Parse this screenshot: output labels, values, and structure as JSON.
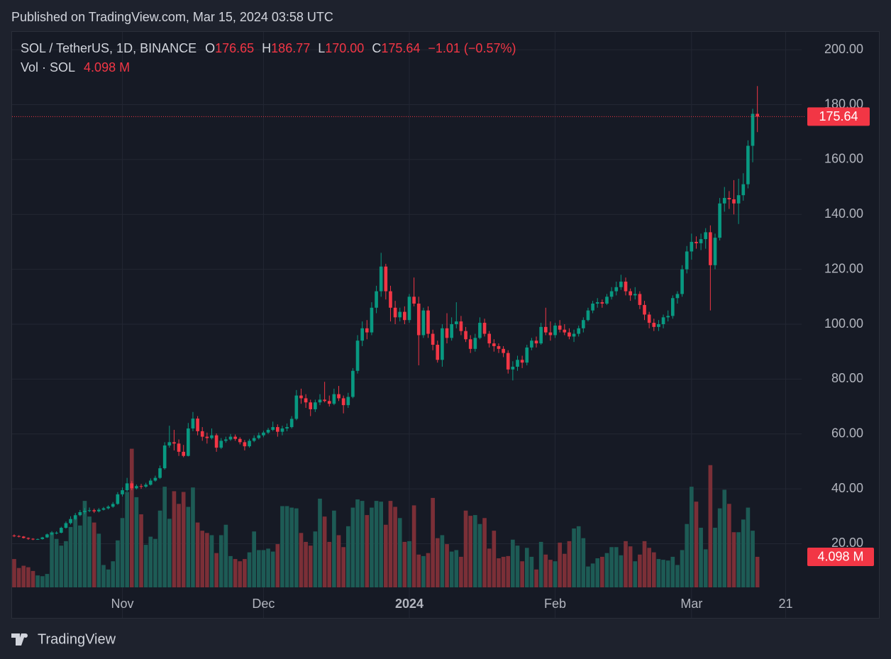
{
  "header": {
    "published": "Published on TradingView.com, Mar 15, 2024 03:58 UTC"
  },
  "footer": {
    "brand": "TradingView"
  },
  "chart_data": {
    "type": "candlestick",
    "symbol": "SOL / TetherUS, 1D, BINANCE",
    "ohlc_legend": [
      {
        "label": "O",
        "value": "176.65"
      },
      {
        "label": "H",
        "value": "186.77"
      },
      {
        "label": "L",
        "value": "170.00"
      },
      {
        "label": "C",
        "value": "175.64"
      }
    ],
    "change": "−1.01 (−0.57%)",
    "volume_legend": {
      "label": "Vol · SOL",
      "value": "4.098 M"
    },
    "last_price_label": "175.64",
    "last_volume_label": "4.098 M",
    "up_color": "#089981",
    "down_color": "#f23645",
    "up_volume_color": "#1d5b55",
    "down_volume_color": "#7b2f37",
    "grid": true,
    "xlim": [
      -0.45,
      167.4
    ],
    "xticks": [
      {
        "value": 23,
        "label": "Nov"
      },
      {
        "value": 53,
        "label": "Dec"
      },
      {
        "value": 84,
        "label": "2024"
      },
      {
        "value": 115,
        "label": "Feb"
      },
      {
        "value": 144,
        "label": "Mar"
      },
      {
        "value": 164,
        "label": "21"
      }
    ],
    "ylim": [
      4.1,
      206.5
    ],
    "yticks": [
      {
        "value": 20,
        "label": "20.00"
      },
      {
        "value": 40,
        "label": "40.00"
      },
      {
        "value": 60,
        "label": "60.00"
      },
      {
        "value": 80,
        "label": "80.00"
      },
      {
        "value": 100,
        "label": "100.00"
      },
      {
        "value": 120,
        "label": "120.00"
      },
      {
        "value": 140,
        "label": "140.00"
      },
      {
        "value": 160,
        "label": "160.00"
      },
      {
        "value": 180,
        "label": "180.00"
      },
      {
        "value": 200,
        "label": "200.00"
      }
    ],
    "volume_ylim": [
      0,
      21.7
    ],
    "ohlc": [
      [
        23.0,
        23.4,
        22.4,
        22.8
      ],
      [
        22.8,
        23.1,
        22.3,
        22.6
      ],
      [
        22.6,
        22.8,
        21.9,
        22.1
      ],
      [
        22.1,
        22.3,
        21.4,
        21.8
      ],
      [
        21.8,
        22.0,
        21.3,
        21.6
      ],
      [
        21.6,
        21.9,
        21.4,
        21.7
      ],
      [
        21.7,
        22.5,
        21.5,
        22.3
      ],
      [
        22.3,
        23.7,
        22.1,
        23.4
      ],
      [
        23.4,
        24.6,
        23.1,
        23.9
      ],
      [
        23.9,
        24.5,
        23.4,
        24.0
      ],
      [
        24.0,
        26.2,
        23.8,
        25.8
      ],
      [
        25.8,
        28.1,
        25.5,
        27.5
      ],
      [
        27.5,
        30.0,
        27.0,
        29.0
      ],
      [
        29.0,
        31.2,
        28.6,
        30.4
      ],
      [
        30.4,
        32.3,
        30.0,
        31.5
      ],
      [
        31.5,
        33.0,
        30.8,
        32.0
      ],
      [
        32.0,
        33.2,
        31.5,
        32.2
      ],
      [
        32.2,
        32.8,
        31.2,
        31.8
      ],
      [
        31.8,
        33.0,
        31.4,
        32.4
      ],
      [
        32.4,
        33.4,
        32.1,
        32.9
      ],
      [
        32.9,
        34.0,
        32.5,
        33.5
      ],
      [
        33.5,
        35.2,
        33.1,
        34.5
      ],
      [
        34.5,
        38.8,
        34.2,
        38.0
      ],
      [
        38.0,
        40.5,
        37.2,
        39.5
      ],
      [
        39.5,
        44.0,
        39.0,
        42.0
      ],
      [
        42.0,
        42.8,
        39.5,
        40.2
      ],
      [
        40.2,
        41.6,
        39.8,
        41.0
      ],
      [
        41.0,
        41.8,
        40.0,
        40.8
      ],
      [
        40.8,
        42.2,
        40.4,
        41.5
      ],
      [
        41.5,
        43.8,
        41.2,
        43.0
      ],
      [
        43.0,
        44.8,
        42.6,
        44.0
      ],
      [
        44.0,
        48.5,
        43.6,
        47.5
      ],
      [
        47.5,
        57.0,
        47.0,
        55.8
      ],
      [
        55.8,
        63.0,
        55.0,
        57.0
      ],
      [
        57.0,
        61.5,
        54.0,
        56.5
      ],
      [
        56.5,
        58.0,
        52.0,
        53.5
      ],
      [
        53.5,
        56.0,
        51.5,
        52.0
      ],
      [
        52.0,
        64.0,
        51.8,
        62.0
      ],
      [
        62.0,
        68.0,
        61.0,
        65.6
      ],
      [
        65.6,
        66.5,
        59.5,
        61.0
      ],
      [
        61.0,
        62.5,
        57.5,
        59.0
      ],
      [
        59.0,
        60.5,
        56.5,
        58.5
      ],
      [
        58.5,
        62.0,
        58.0,
        59.5
      ],
      [
        59.5,
        60.2,
        53.5,
        55.0
      ],
      [
        55.0,
        58.5,
        54.5,
        57.5
      ],
      [
        57.5,
        59.0,
        56.8,
        58.0
      ],
      [
        58.0,
        60.0,
        57.5,
        59.0
      ],
      [
        59.0,
        59.8,
        57.5,
        58.2
      ],
      [
        58.2,
        58.8,
        56.2,
        57.0
      ],
      [
        57.0,
        57.8,
        54.0,
        55.5
      ],
      [
        55.5,
        58.2,
        55.0,
        57.5
      ],
      [
        57.5,
        59.5,
        57.0,
        58.5
      ],
      [
        58.5,
        60.5,
        58.0,
        59.5
      ],
      [
        59.5,
        61.2,
        58.8,
        60.5
      ],
      [
        60.5,
        62.2,
        60.0,
        61.5
      ],
      [
        61.5,
        64.5,
        61.0,
        62.5
      ],
      [
        62.5,
        63.5,
        59.0,
        60.8
      ],
      [
        60.8,
        63.0,
        59.5,
        62.0
      ],
      [
        62.0,
        63.8,
        61.0,
        62.5
      ],
      [
        62.5,
        66.5,
        62.0,
        65.5
      ],
      [
        65.5,
        76.0,
        65.0,
        74.0
      ],
      [
        74.0,
        76.5,
        71.0,
        73.0
      ],
      [
        73.0,
        74.5,
        69.5,
        71.5
      ],
      [
        71.5,
        72.5,
        66.5,
        69.0
      ],
      [
        69.0,
        72.5,
        68.0,
        71.5
      ],
      [
        71.5,
        74.5,
        70.5,
        72.5
      ],
      [
        72.5,
        79.0,
        71.5,
        72.0
      ],
      [
        72.0,
        74.0,
        70.0,
        71.0
      ],
      [
        71.0,
        76.5,
        70.5,
        74.5
      ],
      [
        74.5,
        77.5,
        72.0,
        73.0
      ],
      [
        73.0,
        74.0,
        67.5,
        70.5
      ],
      [
        70.5,
        75.0,
        69.5,
        73.5
      ],
      [
        73.5,
        84.0,
        73.0,
        83.0
      ],
      [
        83.0,
        96.0,
        82.0,
        94.0
      ],
      [
        94.0,
        101.0,
        92.0,
        98.5
      ],
      [
        98.5,
        101.5,
        94.5,
        97.0
      ],
      [
        97.0,
        108.0,
        96.0,
        106.0
      ],
      [
        106.0,
        114.0,
        104.0,
        112.0
      ],
      [
        112.0,
        126.0,
        110.0,
        121.0
      ],
      [
        121.0,
        122.0,
        109.0,
        112.0
      ],
      [
        112.0,
        114.0,
        101.0,
        106.0
      ],
      [
        106.0,
        108.5,
        100.0,
        102.5
      ],
      [
        102.5,
        106.0,
        101.0,
        104.5
      ],
      [
        104.5,
        106.5,
        100.0,
        101.5
      ],
      [
        101.5,
        111.0,
        100.5,
        110.0
      ],
      [
        110.0,
        117.0,
        106.5,
        107.5
      ],
      [
        107.5,
        110.0,
        85.0,
        96.0
      ],
      [
        96.0,
        106.0,
        95.0,
        105.0
      ],
      [
        105.0,
        106.5,
        95.0,
        96.5
      ],
      [
        96.5,
        98.0,
        90.5,
        92.5
      ],
      [
        92.5,
        94.0,
        86.0,
        87.0
      ],
      [
        87.0,
        100.0,
        84.5,
        98.5
      ],
      [
        98.5,
        104.0,
        93.0,
        95.0
      ],
      [
        95.0,
        102.5,
        94.0,
        100.0
      ],
      [
        100.0,
        108.0,
        98.5,
        101.0
      ],
      [
        101.0,
        103.0,
        96.0,
        97.5
      ],
      [
        97.5,
        99.0,
        93.5,
        94.5
      ],
      [
        94.5,
        96.0,
        89.5,
        91.0
      ],
      [
        91.0,
        96.5,
        90.0,
        95.0
      ],
      [
        95.0,
        102.5,
        94.5,
        100.5
      ],
      [
        100.5,
        102.0,
        95.5,
        96.5
      ],
      [
        96.5,
        97.5,
        91.5,
        93.0
      ],
      [
        93.0,
        94.5,
        90.0,
        92.0
      ],
      [
        92.0,
        93.0,
        89.5,
        91.0
      ],
      [
        91.0,
        92.0,
        88.0,
        89.5
      ],
      [
        89.5,
        90.5,
        82.0,
        83.5
      ],
      [
        83.5,
        86.5,
        79.5,
        84.5
      ],
      [
        84.5,
        88.5,
        83.0,
        87.0
      ],
      [
        87.0,
        88.5,
        84.0,
        86.0
      ],
      [
        86.0,
        92.5,
        85.0,
        91.5
      ],
      [
        91.5,
        95.0,
        90.5,
        94.0
      ],
      [
        94.0,
        95.5,
        91.5,
        93.0
      ],
      [
        93.0,
        100.5,
        92.5,
        99.0
      ],
      [
        99.0,
        106.0,
        96.0,
        97.0
      ],
      [
        97.0,
        101.0,
        94.0,
        96.0
      ],
      [
        96.0,
        100.5,
        95.0,
        99.5
      ],
      [
        99.5,
        101.5,
        97.0,
        98.0
      ],
      [
        98.0,
        100.0,
        96.0,
        97.0
      ],
      [
        97.0,
        98.5,
        94.5,
        95.5
      ],
      [
        95.5,
        98.0,
        93.5,
        96.5
      ],
      [
        96.5,
        99.5,
        95.5,
        98.5
      ],
      [
        98.5,
        102.5,
        97.0,
        101.5
      ],
      [
        101.5,
        106.0,
        101.0,
        105.0
      ],
      [
        105.0,
        108.5,
        104.0,
        107.5
      ],
      [
        107.5,
        109.5,
        106.0,
        108.0
      ],
      [
        108.0,
        109.0,
        106.0,
        107.5
      ],
      [
        107.5,
        111.0,
        107.0,
        110.0
      ],
      [
        110.0,
        113.5,
        109.0,
        112.0
      ],
      [
        112.0,
        115.5,
        110.5,
        113.5
      ],
      [
        113.5,
        118.0,
        112.5,
        115.5
      ],
      [
        115.5,
        117.0,
        110.5,
        112.0
      ],
      [
        112.0,
        113.0,
        108.5,
        110.5
      ],
      [
        110.5,
        113.5,
        109.0,
        111.0
      ],
      [
        111.0,
        112.0,
        105.5,
        107.0
      ],
      [
        107.0,
        108.5,
        101.5,
        103.5
      ],
      [
        103.5,
        104.5,
        98.5,
        100.5
      ],
      [
        100.5,
        102.0,
        97.5,
        99.0
      ],
      [
        99.0,
        101.5,
        97.5,
        100.0
      ],
      [
        100.0,
        103.5,
        98.5,
        102.5
      ],
      [
        102.5,
        105.0,
        101.0,
        103.0
      ],
      [
        103.0,
        110.5,
        102.0,
        109.5
      ],
      [
        109.5,
        112.0,
        107.5,
        111.0
      ],
      [
        111.0,
        121.5,
        110.0,
        120.0
      ],
      [
        120.0,
        128.5,
        118.5,
        126.5
      ],
      [
        126.5,
        133.0,
        123.5,
        130.0
      ],
      [
        130.0,
        132.0,
        127.5,
        129.5
      ],
      [
        129.5,
        133.0,
        127.0,
        131.0
      ],
      [
        131.0,
        135.0,
        127.5,
        133.5
      ],
      [
        133.5,
        136.0,
        105.0,
        121.5
      ],
      [
        121.5,
        133.0,
        120.0,
        131.5
      ],
      [
        131.5,
        146.0,
        130.5,
        144.0
      ],
      [
        144.0,
        150.0,
        141.0,
        146.0
      ],
      [
        146.0,
        148.5,
        142.0,
        145.5
      ],
      [
        145.5,
        152.5,
        140.0,
        144.0
      ],
      [
        144.0,
        153.0,
        136.5,
        147.0
      ],
      [
        147.0,
        155.0,
        145.0,
        151.0
      ],
      [
        151.0,
        167.0,
        149.5,
        165.0
      ],
      [
        165.0,
        178.5,
        159.0,
        176.65
      ],
      [
        176.65,
        186.77,
        170.0,
        175.64
      ]
    ],
    "volume": [
      3.8,
      2.6,
      2.9,
      2.7,
      2.2,
      1.6,
      1.5,
      1.8,
      7.4,
      6.5,
      5.6,
      6.2,
      8.1,
      9.2,
      8.3,
      11.6,
      9.5,
      8.7,
      7.2,
      3.0,
      2.4,
      3.5,
      6.3,
      9.3,
      12.8,
      18.6,
      12.1,
      9.8,
      5.7,
      6.8,
      6.5,
      10.3,
      13.5,
      9.2,
      12.9,
      11.2,
      12.8,
      10.8,
      13.4,
      8.7,
      7.6,
      7.3,
      7.0,
      4.6,
      7.0,
      8.4,
      4.2,
      3.8,
      3.5,
      3.8,
      4.7,
      7.5,
      5.0,
      5.0,
      5.2,
      4.8,
      5.8,
      10.9,
      10.9,
      10.7,
      10.6,
      7.3,
      6.1,
      5.6,
      7.5,
      11.9,
      9.5,
      6.1,
      10.3,
      7.0,
      5.4,
      8.2,
      10.7,
      11.8,
      11.6,
      9.7,
      10.7,
      11.6,
      11.5,
      8.4,
      11.6,
      10.8,
      9.3,
      6.1,
      6.2,
      11.0,
      4.4,
      4.2,
      4.6,
      12.0,
      6.6,
      7.0,
      5.8,
      4.8,
      5.0,
      4.1,
      10.3,
      9.6,
      9.7,
      8.5,
      9.3,
      5.2,
      7.6,
      3.9,
      4.1,
      4.2,
      6.4,
      5.6,
      3.5,
      5.3,
      4.1,
      2.4,
      6.1,
      4.4,
      3.7,
      3.5,
      6.0,
      4.5,
      6.2,
      7.9,
      8.2,
      6.6,
      2.8,
      3.2,
      3.9,
      4.1,
      4.6,
      5.4,
      5.4,
      4.3,
      6.2,
      5.5,
      3.5,
      4.4,
      6.2,
      5.3,
      4.7,
      3.8,
      3.7,
      3.6,
      4.1,
      3.0,
      5.0,
      8.5,
      13.5,
      11.5,
      8.0,
      5.1,
      16.4,
      8.0,
      10.6,
      13.1,
      11.2,
      7.4,
      7.4,
      9.1,
      10.7,
      7.6,
      4.098
    ]
  }
}
